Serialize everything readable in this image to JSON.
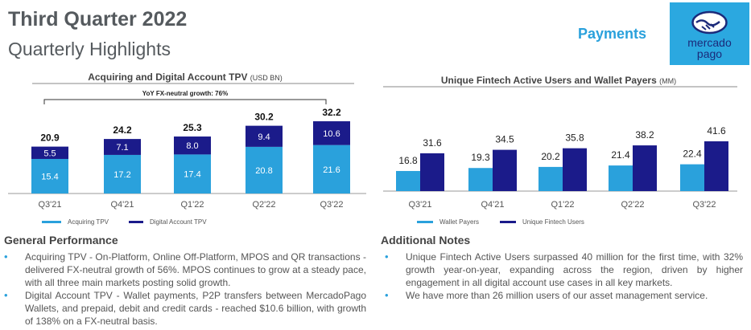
{
  "header": {
    "title": "Third Quarter 2022",
    "subtitle": "Quarterly Highlights",
    "section_label": "Payments",
    "logo_text_line1": "mercado",
    "logo_text_line2": "pago",
    "logo_icon": "handshake-icon"
  },
  "colors": {
    "light_blue": "#2aa1dc",
    "dark_navy": "#1b1b8a",
    "accent_cyan": "#2aa1dc"
  },
  "chart_data": [
    {
      "type": "bar",
      "stacked": true,
      "title": "Acquiring and Digital Account TPV",
      "title_unit": "(USD BN)",
      "annotation": "YoY FX-neutral growth: 76%",
      "categories": [
        "Q3'21",
        "Q4'21",
        "Q1'22",
        "Q2'22",
        "Q3'22"
      ],
      "totals": [
        "20.9",
        "24.2",
        "25.3",
        "30.2",
        "32.2"
      ],
      "series": [
        {
          "name": "Acquiring TPV",
          "values": [
            15.4,
            17.2,
            17.4,
            20.8,
            21.6
          ],
          "labels": [
            "15.4",
            "17.2",
            "17.4",
            "20.8",
            "21.6"
          ]
        },
        {
          "name": "Digital Account TPV",
          "values": [
            5.5,
            7.1,
            8.0,
            9.4,
            10.6
          ],
          "labels": [
            "5.5",
            "7.1",
            "8.0",
            "9.4",
            "10.6"
          ]
        }
      ],
      "ylim": [
        0,
        34
      ],
      "legend": "bottom"
    },
    {
      "type": "bar",
      "stacked": false,
      "title": "Unique Fintech Active Users and Wallet Payers",
      "title_unit": "(MM)",
      "categories": [
        "Q3'21",
        "Q4'21",
        "Q1'22",
        "Q2'22",
        "Q3'22"
      ],
      "series": [
        {
          "name": "Wallet Payers",
          "values": [
            16.8,
            19.3,
            20.2,
            21.4,
            22.4
          ],
          "labels": [
            "16.8",
            "19.3",
            "20.2",
            "21.4",
            "22.4"
          ]
        },
        {
          "name": "Unique Fintech Users",
          "values": [
            31.6,
            34.5,
            35.8,
            38.2,
            41.6
          ],
          "labels": [
            "31.6",
            "34.5",
            "35.8",
            "38.2",
            "41.6"
          ]
        }
      ],
      "ylim": [
        0,
        50
      ],
      "legend": "bottom"
    }
  ],
  "general_performance": {
    "title": "General Performance",
    "bullets": [
      "Acquiring TPV - On-Platform, Online Off-Platform, MPOS and QR transactions - delivered FX-neutral growth of 56%. MPOS continues to grow at a steady pace, with all three main markets posting solid growth.",
      "Digital Account TPV - Wallet payments, P2P transfers between MercadoPago Wallets, and prepaid, debit and credit cards - reached $10.6 billion, with growth of 138% on a FX-neutral basis."
    ]
  },
  "additional_notes": {
    "title": "Additional Notes",
    "bullets": [
      "Unique Fintech Active Users surpassed 40 million for the first time, with 32% growth year-on-year, expanding across the region, driven by higher engagement in all digital account use cases in all key markets.",
      "We have more than 26 million users of our asset management service."
    ]
  }
}
